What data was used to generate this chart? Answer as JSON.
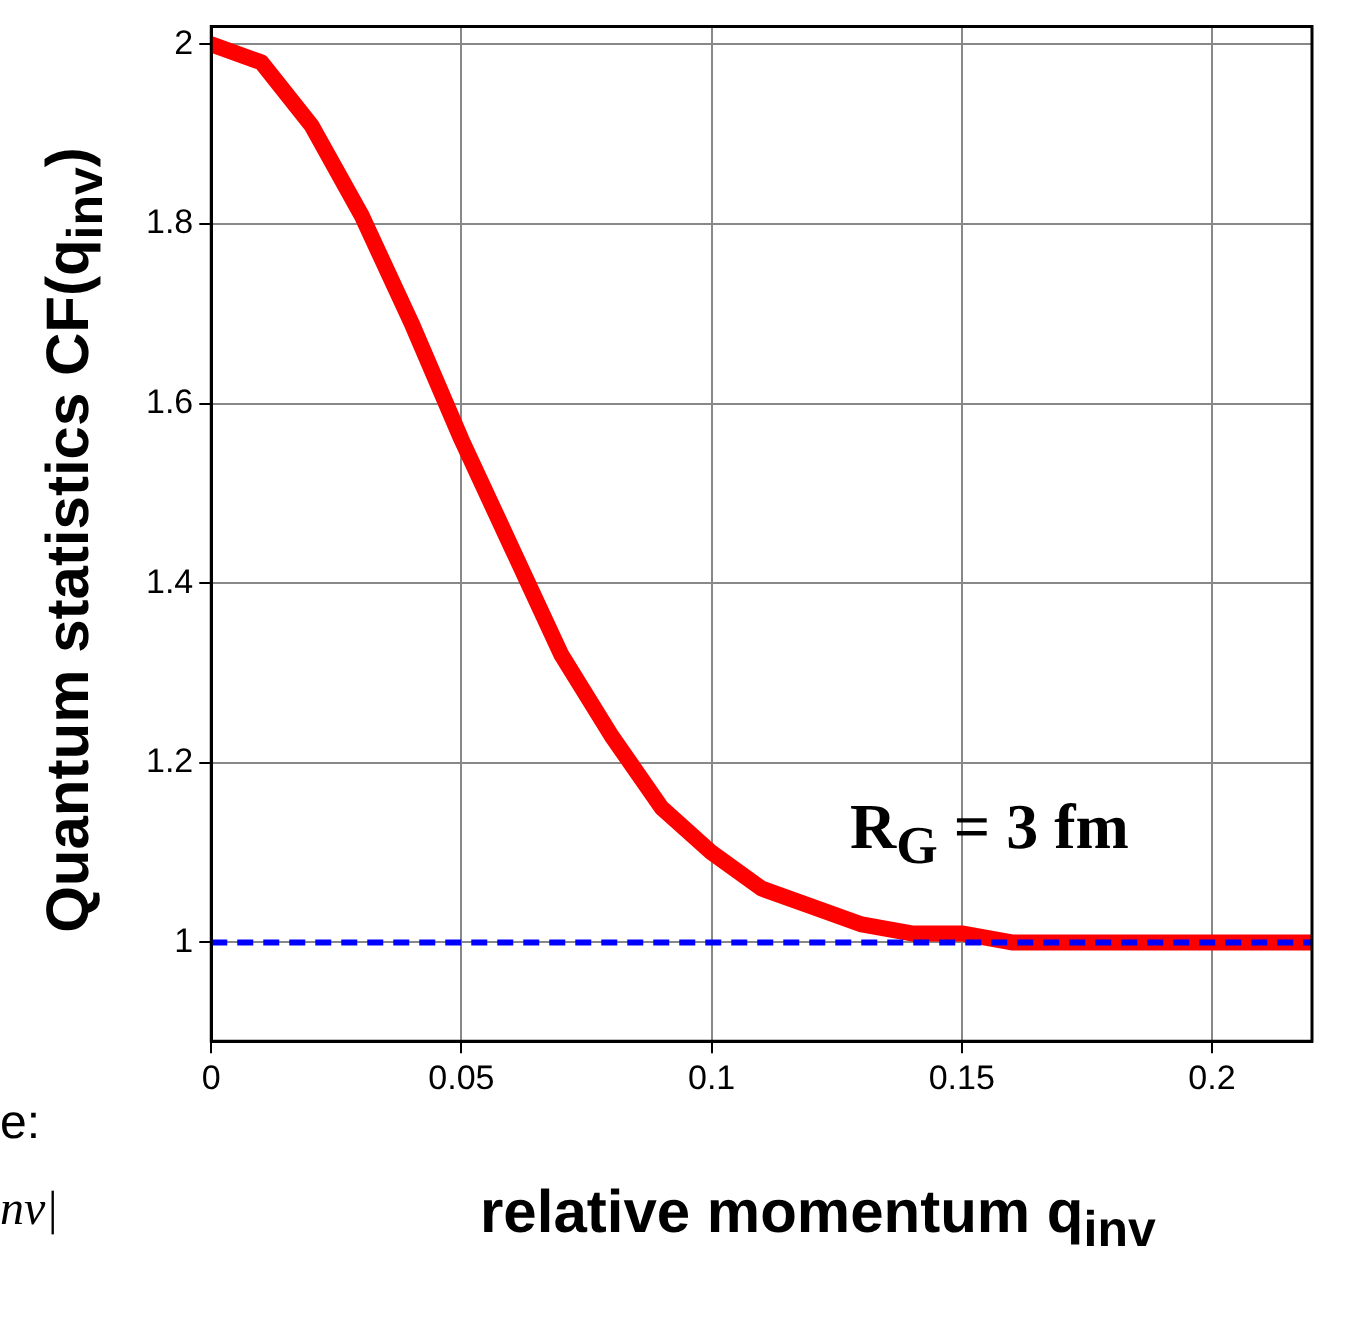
{
  "chart_data": {
    "type": "line",
    "xlabel": "relative momentum q$_{inv}$",
    "ylabel": "Quantum statistics CF(q$_{inv}$)",
    "x": [
      0,
      0.01,
      0.02,
      0.03,
      0.04,
      0.05,
      0.06,
      0.07,
      0.08,
      0.09,
      0.1,
      0.11,
      0.12,
      0.13,
      0.14,
      0.15,
      0.16,
      0.17,
      0.18,
      0.19,
      0.2,
      0.21,
      0.22
    ],
    "series": [
      {
        "color": "#ff0000",
        "values": [
          2,
          1.98,
          1.91,
          1.81,
          1.69,
          1.56,
          1.44,
          1.32,
          1.23,
          1.15,
          1.1,
          1.06,
          1.04,
          1.02,
          1.01,
          1.01,
          1,
          1,
          1,
          1,
          1,
          1,
          1
        ]
      }
    ],
    "xlim": [
      0,
      0.22
    ],
    "xticks": [
      0,
      0.05,
      0.1,
      0.15,
      0.2
    ],
    "ylim": [
      0.89,
      2.02
    ],
    "yticks": [
      1,
      1.2,
      1.4,
      1.6,
      1.8,
      2
    ],
    "ref_lines": [
      {
        "axis": "y",
        "value": 1,
        "color": "#0000ff",
        "line_style": "dashed"
      }
    ],
    "annotations": [
      "R$_{G}$ = 3 fm",
      "e:",
      "nv|"
    ],
    "grid": true,
    "marker": "none",
    "line_style": "solid",
    "legend": false
  }
}
